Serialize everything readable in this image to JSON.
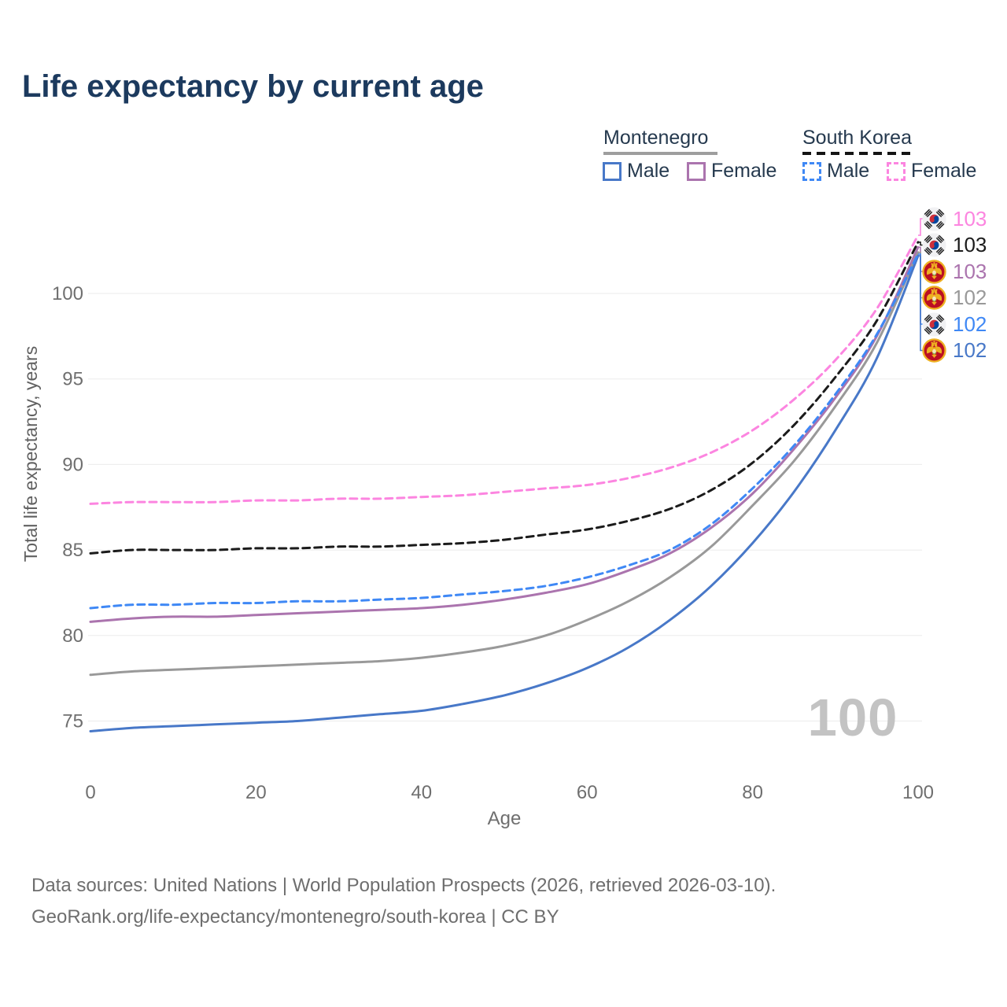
{
  "title": "Life expectancy by current age",
  "legend": {
    "groups": [
      {
        "label": "Montenegro",
        "line_style": "solid",
        "underline_color": "#9e9e9e",
        "items": [
          {
            "label": "Male",
            "color": "#4878c8",
            "dashed": false
          },
          {
            "label": "Female",
            "color": "#ab74ae",
            "dashed": false
          }
        ]
      },
      {
        "label": "South Korea",
        "line_style": "dashed",
        "underline_color": "#141414",
        "items": [
          {
            "label": "Male",
            "color": "#3f88f5",
            "dashed": true
          },
          {
            "label": "Female",
            "color": "#fc85e0",
            "dashed": true
          }
        ]
      }
    ]
  },
  "watermark": "100",
  "footer": {
    "line1": "Data sources: United Nations | World Population Prospects (2026, retrieved 2026-03-10).",
    "line2": "GeoRank.org/life-expectancy/montenegro/south-korea | CC BY"
  },
  "flags": {
    "south_korea": {
      "bg": "#f1f1f3",
      "red": "#cd2e3a",
      "blue": "#0047a0",
      "black": "#1a1a1a"
    },
    "montenegro": {
      "red": "#bb0f23",
      "gold": "#eeb021",
      "shield": "#f5e7c0",
      "green": "#3aa05a"
    }
  },
  "chart_data": {
    "type": "line",
    "title": "Life expectancy by current age",
    "xlabel": "Age",
    "ylabel": "Total life expectancy, years",
    "x": [
      0,
      5,
      10,
      15,
      20,
      25,
      30,
      35,
      40,
      45,
      50,
      55,
      60,
      65,
      70,
      75,
      80,
      85,
      90,
      95,
      100
    ],
    "xticks": [
      0,
      20,
      40,
      60,
      80,
      100
    ],
    "yticks": [
      75,
      80,
      85,
      90,
      95,
      100
    ],
    "xlim": [
      0,
      100
    ],
    "ylim": [
      74,
      104.5
    ],
    "grid": true,
    "legend_position": "top-right",
    "tick_color": "#6f6f6f",
    "grid_color": "#ebebeb",
    "series": [
      {
        "name": "South Korea Female",
        "country": "south_korea",
        "sex": "female",
        "color": "#fc85e0",
        "dashed": true,
        "values": [
          87.7,
          87.8,
          87.8,
          87.8,
          87.9,
          87.9,
          88.0,
          88.0,
          88.1,
          88.2,
          88.4,
          88.6,
          88.8,
          89.2,
          89.8,
          90.7,
          92.0,
          93.8,
          96.1,
          99.1,
          103.4
        ],
        "end_label": "103"
      },
      {
        "name": "South Korea Total",
        "country": "south_korea",
        "sex": "total",
        "color": "#1b1b1b",
        "dashed": true,
        "values": [
          84.8,
          85.0,
          85.0,
          85.0,
          85.1,
          85.1,
          85.2,
          85.2,
          85.3,
          85.4,
          85.6,
          85.9,
          86.2,
          86.7,
          87.4,
          88.5,
          90.1,
          92.3,
          95.1,
          98.4,
          103.0
        ],
        "end_label": "103"
      },
      {
        "name": "Montenegro Female",
        "country": "montenegro",
        "sex": "female",
        "color": "#ab74ae",
        "dashed": false,
        "values": [
          80.8,
          81.0,
          81.1,
          81.1,
          81.2,
          81.3,
          81.4,
          81.5,
          81.6,
          81.8,
          82.1,
          82.5,
          83.0,
          83.8,
          84.8,
          86.3,
          88.3,
          90.9,
          93.9,
          97.5,
          102.7
        ],
        "end_label": "103"
      },
      {
        "name": "Montenegro Total",
        "country": "montenegro",
        "sex": "total",
        "color": "#999999",
        "dashed": false,
        "values": [
          77.7,
          77.9,
          78.0,
          78.1,
          78.2,
          78.3,
          78.4,
          78.5,
          78.7,
          79.0,
          79.4,
          80.0,
          80.9,
          82.0,
          83.4,
          85.2,
          87.6,
          90.2,
          93.4,
          97.1,
          102.4
        ],
        "end_label": "102"
      },
      {
        "name": "South Korea Male",
        "country": "south_korea",
        "sex": "male",
        "color": "#3f88f5",
        "dashed": true,
        "values": [
          81.6,
          81.8,
          81.8,
          81.9,
          81.9,
          82.0,
          82.0,
          82.1,
          82.2,
          82.4,
          82.6,
          82.9,
          83.4,
          84.1,
          85.0,
          86.5,
          88.6,
          91.1,
          94.1,
          97.6,
          102.3
        ],
        "end_label": "102"
      },
      {
        "name": "Montenegro Male",
        "country": "montenegro",
        "sex": "male",
        "color": "#4878c8",
        "dashed": false,
        "values": [
          74.4,
          74.6,
          74.7,
          74.8,
          74.9,
          75.0,
          75.2,
          75.4,
          75.6,
          76.0,
          76.5,
          77.2,
          78.1,
          79.3,
          80.9,
          82.9,
          85.4,
          88.4,
          92.0,
          96.2,
          102.2
        ],
        "end_label": "102"
      }
    ]
  }
}
